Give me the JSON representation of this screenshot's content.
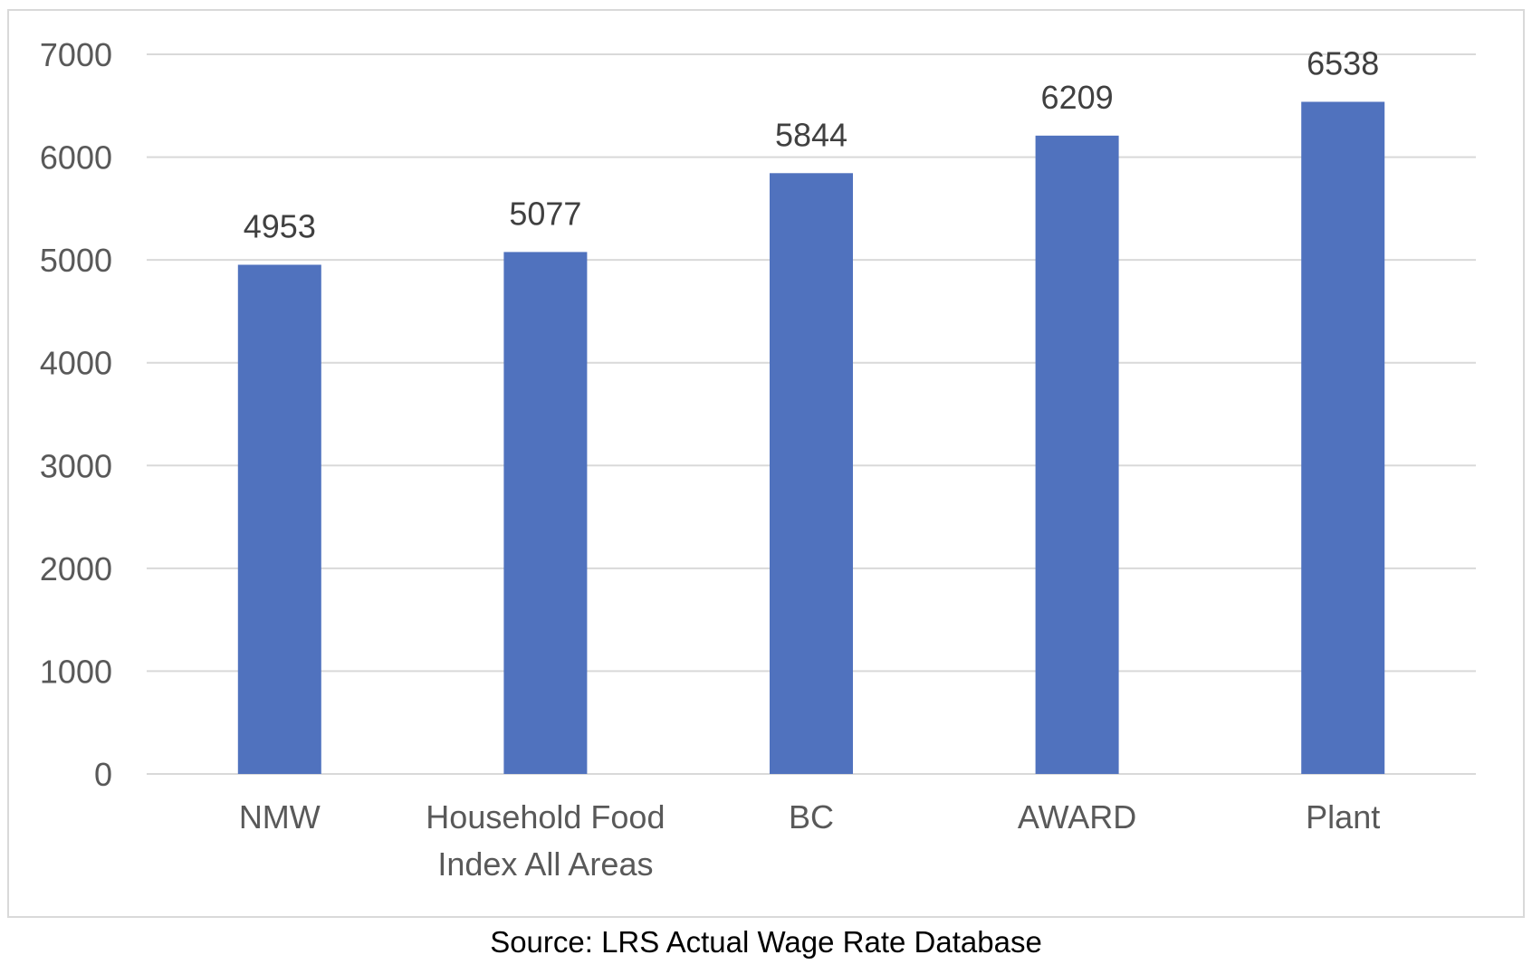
{
  "chart_data": {
    "type": "bar",
    "categories": [
      "NMW",
      "Household Food Index All Areas",
      "BC",
      "AWARD",
      "Plant"
    ],
    "category_label_lines": [
      [
        "NMW"
      ],
      [
        "Household Food",
        "Index All Areas"
      ],
      [
        "BC"
      ],
      [
        "AWARD"
      ],
      [
        "Plant"
      ]
    ],
    "values": [
      4953,
      5077,
      5844,
      6209,
      6538
    ],
    "data_labels": [
      "4953",
      "5077",
      "5844",
      "6209",
      "6538"
    ],
    "ylim": [
      0,
      7000
    ],
    "yticks": [
      0,
      1000,
      2000,
      3000,
      4000,
      5000,
      6000,
      7000
    ],
    "ytick_labels": [
      "0",
      "1000",
      "2000",
      "3000",
      "4000",
      "5000",
      "6000",
      "7000"
    ],
    "title": "",
    "xlabel": "",
    "ylabel": "",
    "grid": true,
    "legend": "none",
    "colors": {
      "bar": "#5072be",
      "grid": "#d9d9d9",
      "axis_text": "#595959",
      "data_label": "#404040"
    }
  },
  "source_note": "Source: LRS Actual Wage Rate Database"
}
